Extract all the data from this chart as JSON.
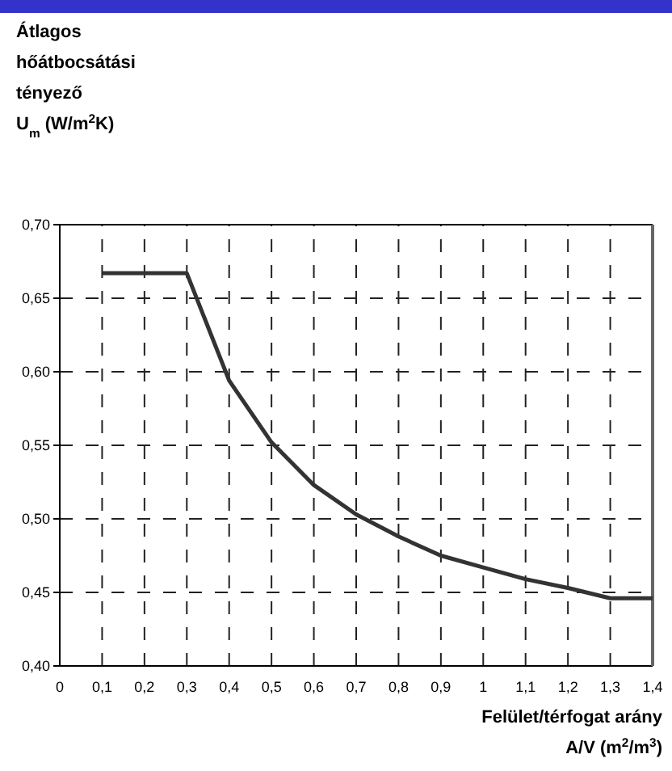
{
  "chart_data": {
    "type": "line",
    "ylabel": "Átlagos\nhőátbocsátási\ntényező\nU$_{m}$ (W/m$^{2}$K)",
    "xlabel": "Felület/térfogat arány\nA/V (m$^{2}$/m$^{3}$)",
    "x": [
      0.1,
      0.3,
      0.4,
      0.5,
      0.6,
      0.7,
      0.8,
      0.9,
      1.0,
      1.1,
      1.2,
      1.3,
      1.4
    ],
    "series": [
      {
        "color": "#333333",
        "values": [
          0.667,
          0.667,
          0.594,
          0.552,
          0.523,
          0.503,
          0.488,
          0.475,
          0.467,
          0.459,
          0.453,
          0.446,
          0.446
        ]
      }
    ],
    "xlim": [
      0,
      1.4
    ],
    "ylim": [
      0.4,
      0.7
    ],
    "xticks": [
      0,
      {
        "value": 0.1,
        "label": "0,1"
      },
      {
        "value": 0.2,
        "label": "0,2"
      },
      {
        "value": 0.3,
        "label": "0,3"
      },
      {
        "value": 0.4,
        "label": "0,4"
      },
      {
        "value": 0.5,
        "label": "0,5"
      },
      {
        "value": 0.6,
        "label": "0,6"
      },
      {
        "value": 0.7,
        "label": "0,7"
      },
      {
        "value": 0.8,
        "label": "0,8"
      },
      {
        "value": 0.9,
        "label": "0,9"
      },
      1,
      {
        "value": 1.1,
        "label": "1,1"
      },
      {
        "value": 1.2,
        "label": "1,2"
      },
      {
        "value": 1.3,
        "label": "1,3"
      },
      {
        "value": 1.4,
        "label": "1,4"
      }
    ],
    "yticks": [
      {
        "value": 0.4,
        "label": "0,40"
      },
      {
        "value": 0.45,
        "label": "0,45"
      },
      {
        "value": 0.5,
        "label": "0,50"
      },
      {
        "value": 0.55,
        "label": "0,55"
      },
      {
        "value": 0.6,
        "label": "0,60"
      },
      {
        "value": 0.65,
        "label": "0,65"
      },
      {
        "value": 0.7,
        "label": "0,70"
      }
    ],
    "grid": true,
    "line_style": "solid"
  }
}
